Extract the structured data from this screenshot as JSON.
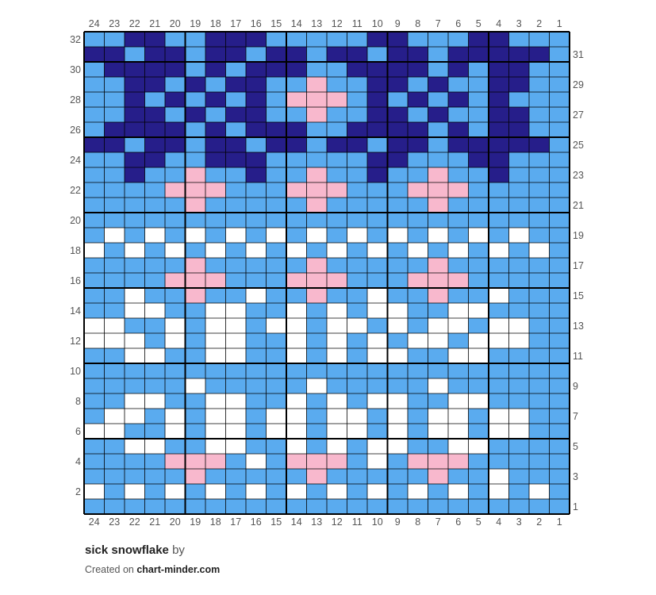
{
  "chart": {
    "title": "sick snowflake",
    "by_text": "by",
    "created_prefix": "Created on",
    "site": "chart-minder.com",
    "colors": {
      "B": "#5aabef",
      "N": "#261e8a",
      "W": "#ffffff",
      "P": "#f8b8cd",
      "grid": "#000000"
    },
    "column_numbers": [
      "24",
      "23",
      "22",
      "21",
      "20",
      "19",
      "18",
      "17",
      "16",
      "15",
      "14",
      "13",
      "12",
      "11",
      "10",
      "9",
      "8",
      "7",
      "6",
      "5",
      "4",
      "3",
      "2",
      "1"
    ],
    "left_row_numbers": [
      "32",
      "30",
      "28",
      "26",
      "24",
      "22",
      "20",
      "18",
      "16",
      "14",
      "12",
      "10",
      "8",
      "6",
      "4",
      "2"
    ],
    "right_row_numbers": [
      "31",
      "29",
      "27",
      "25",
      "23",
      "21",
      "19",
      "17",
      "15",
      "13",
      "11",
      "9",
      "7",
      "5",
      "3",
      "1"
    ],
    "grid_rows": [
      "BBNNBBNNNBBBBBNNBBBNNBBB",
      "NNBNNBNNBNNBNNBNNBNNNNNB",
      "BNNNNBNBNNNBBNNNNBNBNNBB",
      "BBNNBNBNNBBPBBNNBNBBNNBB",
      "BBNBNBNBNBPPPBNBNBNBNBBB",
      "BBNNBNBNNBBPBBNNBNBBNNBB",
      "BNNNNBNBNNNBBNNNNBNBNNBB",
      "NNBNNBNNBNNBNNBNNBNNNNNB",
      "BBNNBBNNNBBBBBNNBBBNNBBB",
      "BBNBBPBBNBBPBBNBBPBBNBBB",
      "BBBBPPPBBBPPPBBBPPPBBBBB",
      "BBBBBPBBBBBPBBBBBPBBBBBB",
      "BBBBBBBBBBBBBBBBBBBBBBBB",
      "BWBWBWBWBWBWBWBWBWBWBWBB",
      "WBWBWBWBWBWBWBWBWBWBWBWB",
      "BBBBBPBBBBBPBBBBBPBBBBBB",
      "BBBBPPPBBBPPPBBBPPPBBBBB",
      "BBWBBPBBWBBPBBWBBPBBWBBB",
      "BBWWBBWWBBWBWBWWBBWWBBBB",
      "WWBBWBWWBWWBWWBWBWWBWWBB",
      "WWWBWBWWBBWBWBWBWWBWWWBB",
      "BBWWBBWWBBWBWBWWBBWWBBBB",
      "BBBBBBBBBBBBBBBBBBBBBBBB",
      "BBBBBWBBBBBWBBBBBWBBBBBB",
      "BBWWBBWWBBWBWBWWBBWWBBBB",
      "BWWBWBWWBWWBWWBWBWWBWWBB",
      "WWBBWBWWBWWBWWBWBWWBWWBB",
      "BBWWBBWWBBWBWBWWBBWWBBBB",
      "BBBBPPPBWBPPPBWBPPPBBBBB",
      "BBBBBPBBBBBPBBBBBPBBWBBB",
      "WBWBWBWBWBWBWBWBWBWBWBWB",
      "BBBBBBBBBBBBBBBBBBBBBBBB"
    ]
  }
}
